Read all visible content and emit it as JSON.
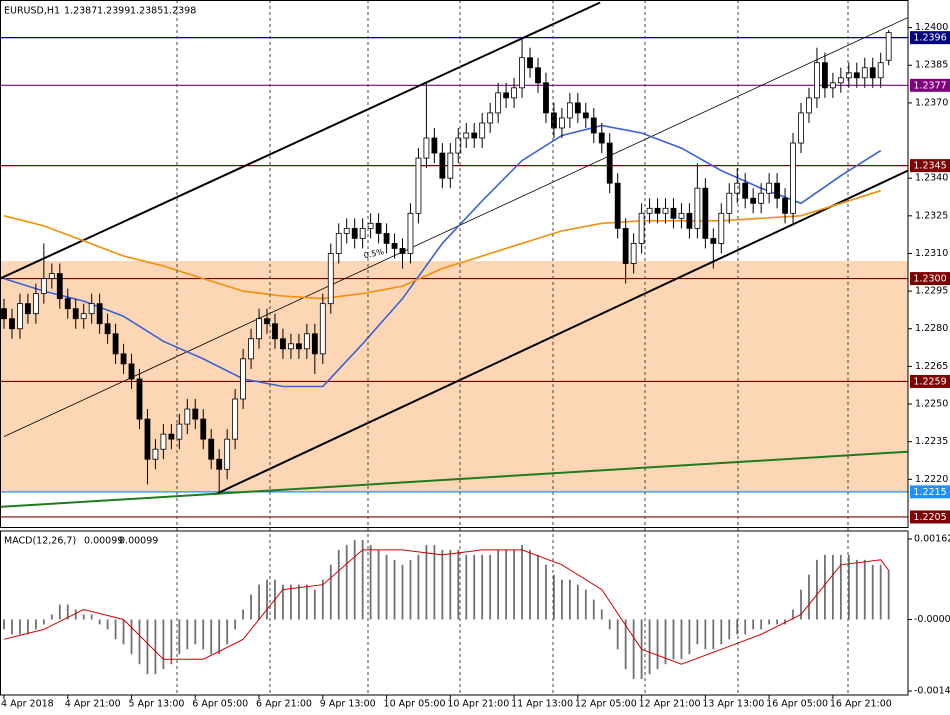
{
  "chart_data": [
    {
      "type": "candlestick",
      "title": "EURUSD,H1",
      "title_values": [
        1.2387,
        1.2399,
        1.2385,
        1.2398
      ],
      "categories": [
        "4 Apr 2018",
        null,
        null,
        null,
        null,
        null,
        null,
        null,
        "4 Apr 21:00",
        null,
        null,
        null,
        null,
        null,
        null,
        null,
        "5 Apr 13:00",
        null,
        null,
        null,
        null,
        null,
        null,
        null,
        "6 Apr 05:00",
        null,
        null,
        null,
        null,
        null,
        null,
        null,
        "6 Apr 21:00",
        null,
        null,
        null,
        null,
        null,
        null,
        null,
        "9 Apr 13:00",
        null,
        null,
        null,
        null,
        null,
        null,
        null,
        "10 Apr 05:00",
        null,
        null,
        null,
        null,
        null,
        null,
        null,
        "10 Apr 21:00",
        null,
        null,
        null,
        null,
        null,
        null,
        null,
        "11 Apr 13:00",
        null,
        null,
        null,
        null,
        null,
        null,
        null,
        "12 Apr 05:00",
        null,
        null,
        null,
        null,
        null,
        null,
        null,
        "12 Apr 21:00",
        null,
        null,
        null,
        null,
        null,
        null,
        null,
        "13 Apr 13:00",
        null,
        null,
        null,
        null,
        null,
        null,
        null,
        "16 Apr 05:00",
        null,
        null,
        null,
        null,
        null,
        null,
        null,
        "16 Apr 21:00",
        null,
        null,
        null,
        null,
        null,
        null,
        null
      ],
      "open": [
        1.2288,
        1.2284,
        1.228,
        1.229,
        1.2286,
        1.2294,
        1.23,
        1.2302,
        1.2292,
        1.2288,
        1.2284,
        1.2286,
        1.229,
        1.2282,
        1.2278,
        1.227,
        1.2266,
        1.226,
        1.2244,
        1.2228,
        1.2232,
        1.2238,
        1.2236,
        1.2242,
        1.2248,
        1.2244,
        1.2236,
        1.2228,
        1.2224,
        1.2236,
        1.2252,
        1.2268,
        1.2276,
        1.2284,
        1.2282,
        1.2276,
        1.2272,
        1.2274,
        1.2272,
        1.2278,
        1.227,
        1.229,
        1.231,
        1.2318,
        1.232,
        1.2316,
        1.232,
        1.2322,
        1.2318,
        1.2314,
        1.2312,
        1.231,
        1.2326,
        1.2348,
        1.2356,
        1.235,
        1.234,
        1.235,
        1.2356,
        1.2358,
        1.2356,
        1.2362,
        1.2366,
        1.2374,
        1.2372,
        1.2376,
        1.2388,
        1.2384,
        1.2378,
        1.2366,
        1.236,
        1.2364,
        1.237,
        1.2366,
        1.2364,
        1.2358,
        1.2354,
        1.2338,
        1.232,
        1.2306,
        1.2314,
        1.2326,
        1.2328,
        1.2326,
        1.2328,
        1.2324,
        1.2326,
        1.232,
        1.2336,
        1.2316,
        1.2314,
        1.2326,
        1.2334,
        1.2338,
        1.2332,
        1.233,
        1.2334,
        1.2338,
        1.2332,
        1.2326,
        1.2354,
        1.2366,
        1.2372,
        1.2386,
        1.2376,
        1.2378,
        1.238,
        1.2382,
        1.238,
        1.2384,
        1.238,
        1.2387
      ],
      "high": [
        1.2292,
        1.2288,
        1.2294,
        1.2294,
        1.2298,
        1.2314,
        1.2306,
        1.2306,
        1.2296,
        1.2292,
        1.229,
        1.2294,
        1.2294,
        1.2286,
        1.2282,
        1.2274,
        1.227,
        1.2264,
        1.2248,
        1.2236,
        1.2242,
        1.2242,
        1.2246,
        1.2252,
        1.2252,
        1.2248,
        1.224,
        1.2232,
        1.224,
        1.2256,
        1.2272,
        1.228,
        1.2288,
        1.2288,
        1.2286,
        1.228,
        1.2278,
        1.2278,
        1.2282,
        1.2282,
        1.2294,
        1.2314,
        1.2322,
        1.2324,
        1.2324,
        1.2324,
        1.2326,
        1.2326,
        1.2322,
        1.2318,
        1.2316,
        1.233,
        1.2352,
        1.2378,
        1.236,
        1.2354,
        1.2354,
        1.236,
        1.2362,
        1.2362,
        1.2366,
        1.237,
        1.2378,
        1.2378,
        1.238,
        1.2396,
        1.2392,
        1.2388,
        1.2382,
        1.237,
        1.2368,
        1.2374,
        1.2374,
        1.237,
        1.2368,
        1.2362,
        1.2358,
        1.2342,
        1.2324,
        1.2318,
        1.233,
        1.2332,
        1.2332,
        1.2332,
        1.2332,
        1.233,
        1.233,
        1.2346,
        1.234,
        1.232,
        1.233,
        1.2338,
        1.2344,
        1.2342,
        1.2336,
        1.2338,
        1.2342,
        1.2342,
        1.2336,
        1.2358,
        1.237,
        1.2376,
        1.2392,
        1.239,
        1.2382,
        1.2384,
        1.2386,
        1.2386,
        1.2388,
        1.2388,
        1.239,
        1.2399
      ],
      "low": [
        1.228,
        1.2276,
        1.2276,
        1.2282,
        1.2282,
        1.229,
        1.2296,
        1.2288,
        1.2284,
        1.228,
        1.228,
        1.2282,
        1.2278,
        1.2274,
        1.2266,
        1.2262,
        1.2256,
        1.224,
        1.2218,
        1.2224,
        1.2228,
        1.2232,
        1.2232,
        1.2238,
        1.224,
        1.2232,
        1.2224,
        1.2214,
        1.222,
        1.2232,
        1.2248,
        1.2264,
        1.2272,
        1.2278,
        1.2272,
        1.2268,
        1.2268,
        1.2268,
        1.2268,
        1.2262,
        1.2266,
        1.2286,
        1.2306,
        1.2314,
        1.2312,
        1.2312,
        1.2316,
        1.2314,
        1.231,
        1.2308,
        1.2304,
        1.2306,
        1.2322,
        1.2344,
        1.2346,
        1.2336,
        1.2336,
        1.2346,
        1.2352,
        1.2352,
        1.2352,
        1.2358,
        1.2362,
        1.2368,
        1.2368,
        1.2372,
        1.238,
        1.2374,
        1.2362,
        1.2356,
        1.2356,
        1.236,
        1.2362,
        1.236,
        1.2354,
        1.235,
        1.2334,
        1.2316,
        1.2298,
        1.2302,
        1.231,
        1.2322,
        1.2322,
        1.2322,
        1.232,
        1.232,
        1.2316,
        1.2316,
        1.2312,
        1.2304,
        1.231,
        1.2322,
        1.233,
        1.2328,
        1.2326,
        1.2326,
        1.233,
        1.2328,
        1.2322,
        1.2322,
        1.235,
        1.2362,
        1.2368,
        1.2372,
        1.2372,
        1.2374,
        1.2376,
        1.2376,
        1.2376,
        1.2376,
        1.2376,
        1.2385
      ],
      "close": [
        1.2284,
        1.228,
        1.229,
        1.2286,
        1.2294,
        1.23,
        1.2302,
        1.2292,
        1.2288,
        1.2284,
        1.2286,
        1.229,
        1.2282,
        1.2278,
        1.227,
        1.2266,
        1.226,
        1.2244,
        1.2228,
        1.2232,
        1.2238,
        1.2236,
        1.2242,
        1.2248,
        1.2244,
        1.2236,
        1.2228,
        1.2224,
        1.2236,
        1.2252,
        1.2268,
        1.2276,
        1.2284,
        1.2282,
        1.2276,
        1.2272,
        1.2274,
        1.2272,
        1.2278,
        1.227,
        1.229,
        1.231,
        1.2318,
        1.232,
        1.2316,
        1.232,
        1.2322,
        1.2318,
        1.2314,
        1.2312,
        1.231,
        1.2326,
        1.2348,
        1.2356,
        1.235,
        1.234,
        1.235,
        1.2356,
        1.2358,
        1.2356,
        1.2362,
        1.2366,
        1.2374,
        1.2372,
        1.2376,
        1.2388,
        1.2384,
        1.2378,
        1.2366,
        1.236,
        1.2364,
        1.237,
        1.2366,
        1.2364,
        1.2358,
        1.2354,
        1.2338,
        1.232,
        1.2306,
        1.2314,
        1.2326,
        1.2328,
        1.2326,
        1.2328,
        1.2324,
        1.2326,
        1.232,
        1.2336,
        1.2316,
        1.2314,
        1.2326,
        1.2334,
        1.2338,
        1.2332,
        1.233,
        1.2334,
        1.2338,
        1.2332,
        1.2326,
        1.2354,
        1.2366,
        1.2372,
        1.2386,
        1.2376,
        1.2378,
        1.238,
        1.2382,
        1.238,
        1.2384,
        1.238,
        1.2386,
        1.2398
      ],
      "up_color": "#ffffff",
      "down_color": "#000000",
      "ylim": [
        1.2201,
        1.2411
      ],
      "yticks": [
        {
          "value": 1.24,
          "label": "1.2400"
        },
        1.2385,
        {
          "value": 1.237,
          "label": "1.2370"
        },
        {
          "value": 1.234,
          "label": "1.2340"
        },
        1.2325,
        {
          "value": 1.231,
          "label": "1.2310"
        },
        1.2295,
        {
          "value": 1.228,
          "label": "1.2280"
        },
        1.2265,
        {
          "value": 1.225,
          "label": "1.2250"
        },
        1.2235,
        {
          "value": 1.222,
          "label": "1.2220"
        }
      ],
      "zone": [
        1.2215,
        1.2307
      ],
      "zone_color": "#fdd7b5",
      "levels": [
        {
          "value": 1.2396,
          "color": "#000080"
        },
        {
          "value": 1.2377,
          "color": "#800080"
        },
        {
          "value": 1.2345,
          "color": "#800000"
        },
        {
          "value": 1.23,
          "label": "1.2300",
          "color": "#800000"
        },
        {
          "value": 1.2259,
          "color": "#800000"
        },
        {
          "value": 1.2215,
          "color": "#1e90ff"
        },
        {
          "value": 1.2205,
          "color": "#800000"
        }
      ],
      "lines": [
        {
          "x": [
            -0.5,
            74.8
          ],
          "values": [
            1.23,
            1.241
          ],
          "color": "#000000",
          "width": 2
        },
        {
          "x": [
            0,
            113.4
          ],
          "values": [
            1.2237,
            1.2404
          ],
          "color": "#000000",
          "width": 0.8
        },
        {
          "x": [
            26.5,
            113.4
          ],
          "values": [
            1.2214,
            1.2343
          ],
          "color": "#000000",
          "width": 2
        },
        {
          "x": [
            -0.5,
            113.4
          ],
          "values": [
            1.2209,
            1.2231
          ],
          "color": "#1e7b1e",
          "width": 2
        }
      ],
      "overlays": [
        {
          "color": "#3a62d6",
          "x": [
            0,
            5,
            10,
            15,
            20,
            25,
            30,
            35,
            40,
            45,
            50,
            55,
            60,
            65,
            70,
            75,
            80,
            85,
            90,
            95,
            100,
            105,
            110
          ],
          "values": [
            1.23,
            1.2295,
            1.2291,
            1.2285,
            1.2275,
            1.2268,
            1.226,
            1.2257,
            1.2257,
            1.2274,
            1.2292,
            1.2314,
            1.2331,
            1.2347,
            1.2357,
            1.2361,
            1.2358,
            1.2352,
            1.2343,
            1.2336,
            1.233,
            1.2341,
            1.2351
          ]
        },
        {
          "color": "#f0900a",
          "x": [
            0,
            5,
            10,
            15,
            20,
            25,
            30,
            35,
            40,
            45,
            50,
            55,
            60,
            65,
            70,
            75,
            80,
            85,
            90,
            95,
            100,
            105,
            110
          ],
          "values": [
            1.2325,
            1.2321,
            1.2315,
            1.2309,
            1.2305,
            1.23,
            1.2295,
            1.2293,
            1.2292,
            1.2294,
            1.2297,
            1.2304,
            1.2309,
            1.2314,
            1.2319,
            1.2322,
            1.2323,
            1.2323,
            1.2323,
            1.2324,
            1.2325,
            1.233,
            1.2335
          ]
        }
      ],
      "annotation": "0.5%"
    },
    {
      "type": "macd",
      "title": "MACD(12,26,7)",
      "title_values": [
        0.00099,
        0.00099
      ],
      "values": [
        -0.0002,
        -0.0003,
        -0.0003,
        -0.0003,
        -0.0002,
        -0.0001,
        0.0001,
        0.0003,
        0.0003,
        0.0002,
        0.0001,
        0.0001,
        -0.0001,
        -0.0002,
        -0.0004,
        -0.0005,
        -0.0007,
        -0.0009,
        -0.0011,
        -0.0011,
        -0.001,
        -0.0009,
        -0.0007,
        -0.0006,
        -0.0005,
        -0.0006,
        -0.0007,
        -0.0007,
        -0.0005,
        -0.0002,
        0.0002,
        0.0005,
        0.0007,
        0.0008,
        0.0008,
        0.0007,
        0.0007,
        0.0007,
        0.0007,
        0.0006,
        0.0008,
        0.0011,
        0.0014,
        0.0015,
        0.0016,
        0.0016,
        0.0015,
        0.0014,
        0.0013,
        0.0012,
        0.0011,
        0.0012,
        0.0013,
        0.0015,
        0.0015,
        0.0014,
        0.0014,
        0.0014,
        0.0013,
        0.0013,
        0.0013,
        0.0013,
        0.0014,
        0.0014,
        0.0014,
        0.0015,
        0.0014,
        0.0013,
        0.0011,
        0.0009,
        0.0008,
        0.0008,
        0.0007,
        0.0006,
        0.0004,
        0.0002,
        -0.0002,
        -0.0006,
        -0.001,
        -0.0012,
        -0.0012,
        -0.0011,
        -0.001,
        -0.0009,
        -0.0008,
        -0.0008,
        -0.0007,
        -0.0005,
        -0.0006,
        -0.0006,
        -0.0005,
        -0.0004,
        -0.0003,
        -0.0003,
        -0.0002,
        -0.0002,
        -0.0001,
        -0.0001,
        -0.0001,
        0.0002,
        0.0006,
        0.0009,
        0.0012,
        0.0013,
        0.0013,
        0.0013,
        0.0013,
        0.0012,
        0.0012,
        0.0011,
        0.0011,
        0.00099
      ],
      "color": "#707070",
      "signal": {
        "color": "#d00000",
        "x": [
          0,
          5,
          10,
          15,
          20,
          25,
          30,
          35,
          40,
          45,
          50,
          55,
          60,
          65,
          70,
          75,
          80,
          85,
          90,
          95,
          100,
          105,
          110,
          111
        ],
        "values": [
          -0.0004,
          -0.0002,
          0.0002,
          0.0,
          -0.0008,
          -0.0008,
          -0.0004,
          0.0006,
          0.0007,
          0.0014,
          0.0014,
          0.0013,
          0.0014,
          0.0014,
          0.0011,
          0.0006,
          -0.0006,
          -0.0009,
          -0.0006,
          -0.0003,
          0.0001,
          0.0011,
          0.0012,
          0.00099
        ]
      },
      "ylim": [
        -0.00152,
        0.00178
      ],
      "yticks": [
        0.00162,
        {
          "value": 0,
          "label": "-0.00000"
        },
        -0.00144
      ]
    }
  ]
}
